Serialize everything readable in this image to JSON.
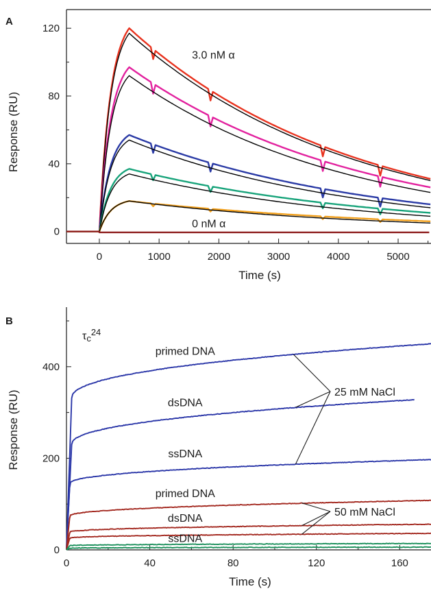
{
  "chart_data": [
    {
      "panel": "A",
      "type": "line",
      "xlabel": "Time (s)",
      "ylabel": "Response (RU)",
      "xlim": [
        -550,
        5550
      ],
      "ylim": [
        -7,
        131
      ],
      "x_ticks": [
        0,
        1000,
        2000,
        3000,
        4000,
        5000
      ],
      "y_ticks": [
        0,
        40,
        80,
        120
      ],
      "grid": false,
      "legend": "none",
      "annotations": [
        "3.0 nM α",
        "0 nM α"
      ],
      "series": [
        {
          "color": "#e8321e",
          "peak": 120,
          "end": 31,
          "fit_peak": 117,
          "fit_end": 30
        },
        {
          "color": "#e2219e",
          "peak": 97,
          "end": 26,
          "fit_peak": 92,
          "fit_end": 23
        },
        {
          "color": "#2a3aa5",
          "peak": 57,
          "end": 16,
          "fit_peak": 54,
          "fit_end": 14
        },
        {
          "color": "#17a37a",
          "peak": 37,
          "end": 11,
          "fit_peak": 34,
          "fit_end": 9
        },
        {
          "color": "#f2a01c",
          "peak": 18,
          "end": 6,
          "fit_peak": 18,
          "fit_end": 5
        },
        {
          "color": "#8e1d1d",
          "peak": 0,
          "end": 0,
          "fit_peak": 0,
          "fit_end": 0
        }
      ],
      "injection_end_s": 500
    },
    {
      "panel": "B",
      "type": "line",
      "title": "τc24",
      "xlabel": "Time (s)",
      "ylabel": "Response (RU)",
      "xlim": [
        0,
        175
      ],
      "ylim": [
        0,
        530
      ],
      "x_ticks": [
        0,
        40,
        80,
        120,
        160
      ],
      "y_ticks": [
        0,
        200,
        400
      ],
      "grid": false,
      "legend": "none",
      "annotations": [
        "25 mM NaCl",
        "50 mM NaCl"
      ],
      "series": [
        {
          "name": "primed DNA",
          "condition": "25 mM NaCl",
          "color": "#2a36a8",
          "end_x": 175,
          "knee": 360,
          "end": 450
        },
        {
          "name": "dsDNA",
          "condition": "25 mM NaCl",
          "color": "#2a36a8",
          "end_x": 167,
          "knee": 250,
          "end": 330
        },
        {
          "name": "ssDNA",
          "condition": "25 mM NaCl",
          "color": "#2a36a8",
          "end_x": 175,
          "knee": 157,
          "end": 197
        },
        {
          "name": "primed DNA",
          "condition": "50 mM NaCl",
          "color": "#a3281f",
          "end_x": 175,
          "knee": 80,
          "end": 108
        },
        {
          "name": "dsDNA",
          "condition": "50 mM NaCl",
          "color": "#a3281f",
          "end_x": 175,
          "knee": 42,
          "end": 56
        },
        {
          "name": "ssDNA",
          "condition": "50 mM NaCl",
          "color": "#a3281f",
          "end_x": 175,
          "knee": 28,
          "end": 36
        },
        {
          "color": "#1a8f5a",
          "knee": 10,
          "end": 14
        },
        {
          "color": "#1a8f5a",
          "knee": 4,
          "end": 6
        }
      ]
    }
  ]
}
